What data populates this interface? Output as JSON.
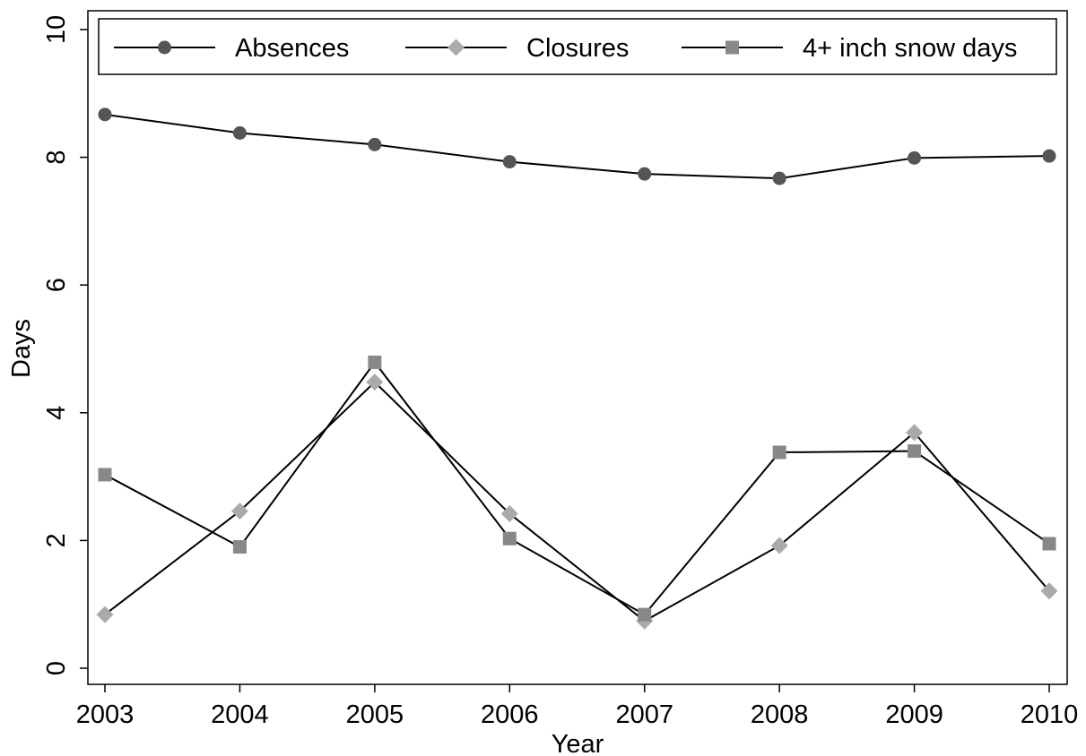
{
  "chart_data": {
    "type": "line",
    "title": "",
    "xlabel": "Year",
    "ylabel": "Days",
    "x": [
      2003,
      2004,
      2005,
      2006,
      2007,
      2008,
      2009,
      2010
    ],
    "x_tick_labels": [
      "2003",
      "2004",
      "2005",
      "2006",
      "2007",
      "2008",
      "2009",
      "2010"
    ],
    "ylim": [
      0,
      10
    ],
    "y_tick_labels": [
      "0",
      "2",
      "4",
      "6",
      "8",
      "10"
    ],
    "y_ticks": [
      0,
      2,
      4,
      6,
      8,
      10
    ],
    "grid": false,
    "legend_position": "top",
    "series": [
      {
        "name": "Absences",
        "marker": "circle",
        "color": "#555555",
        "values": [
          8.67,
          8.38,
          8.2,
          7.93,
          7.74,
          7.67,
          7.99,
          8.02
        ]
      },
      {
        "name": "Closures",
        "marker": "diamond",
        "color": "#aaaaaa",
        "values": [
          0.84,
          2.46,
          4.48,
          2.42,
          0.74,
          1.92,
          3.69,
          1.21
        ]
      },
      {
        "name": "4+ inch snow days",
        "marker": "square",
        "color": "#888888",
        "values": [
          3.03,
          1.9,
          4.79,
          2.03,
          0.84,
          3.38,
          3.4,
          1.95
        ]
      }
    ]
  }
}
